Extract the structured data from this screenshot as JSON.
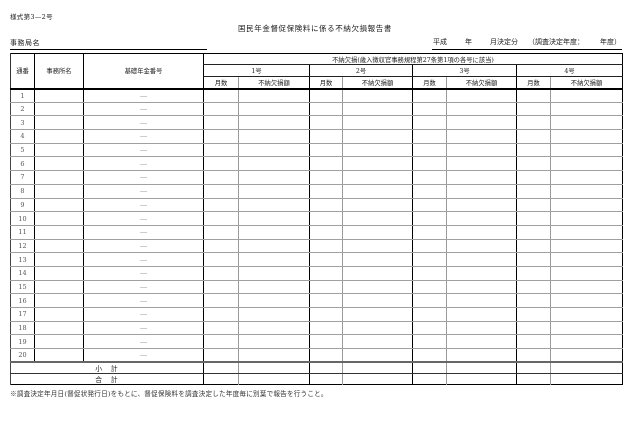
{
  "page": {
    "form_number": "様式第3—2号",
    "title": "国民年金督促保険料に係る不納欠損報告書",
    "office_label": "事務局名",
    "date_line": {
      "era": "平成",
      "year_label": "年",
      "month_label": "月決定分",
      "survey_open": "（調査決定年度：",
      "survey_close": "年度）"
    },
    "footer_note": "※調査決定年月日(督促状発行日)をもとに、督促保険料を調査決定した年度毎に別葉で報告を行うこと。"
  },
  "table": {
    "col_serial": "通番",
    "col_office": "事務所名",
    "col_pension": "基礎年金番号",
    "group_header": "不納欠損(歳入徴収官事務規程第27条第1項の各号に該当)",
    "groups": [
      "1号",
      "2号",
      "3号",
      "4号"
    ],
    "sub_months": "月数",
    "sub_amount": "不納欠損額",
    "subtotal_label": "小　計",
    "total_label": "合　計",
    "rows": [
      {
        "no": "1",
        "office": "",
        "pension_no": "―"
      },
      {
        "no": "2",
        "office": "",
        "pension_no": "―"
      },
      {
        "no": "3",
        "office": "",
        "pension_no": "―"
      },
      {
        "no": "4",
        "office": "",
        "pension_no": "―"
      },
      {
        "no": "5",
        "office": "",
        "pension_no": "―"
      },
      {
        "no": "6",
        "office": "",
        "pension_no": "―"
      },
      {
        "no": "7",
        "office": "",
        "pension_no": "―"
      },
      {
        "no": "8",
        "office": "",
        "pension_no": "―"
      },
      {
        "no": "9",
        "office": "",
        "pension_no": "―"
      },
      {
        "no": "10",
        "office": "",
        "pension_no": "―"
      },
      {
        "no": "11",
        "office": "",
        "pension_no": "―"
      },
      {
        "no": "12",
        "office": "",
        "pension_no": "―"
      },
      {
        "no": "13",
        "office": "",
        "pension_no": "―"
      },
      {
        "no": "14",
        "office": "",
        "pension_no": "―"
      },
      {
        "no": "15",
        "office": "",
        "pension_no": "―"
      },
      {
        "no": "16",
        "office": "",
        "pension_no": "―"
      },
      {
        "no": "17",
        "office": "",
        "pension_no": "―"
      },
      {
        "no": "18",
        "office": "",
        "pension_no": "―"
      },
      {
        "no": "19",
        "office": "",
        "pension_no": "―"
      },
      {
        "no": "20",
        "office": "",
        "pension_no": "―"
      }
    ],
    "colors": {
      "border_dark": "#000000",
      "border_light": "#9a9a9a",
      "text": "#1a1a1a"
    }
  }
}
